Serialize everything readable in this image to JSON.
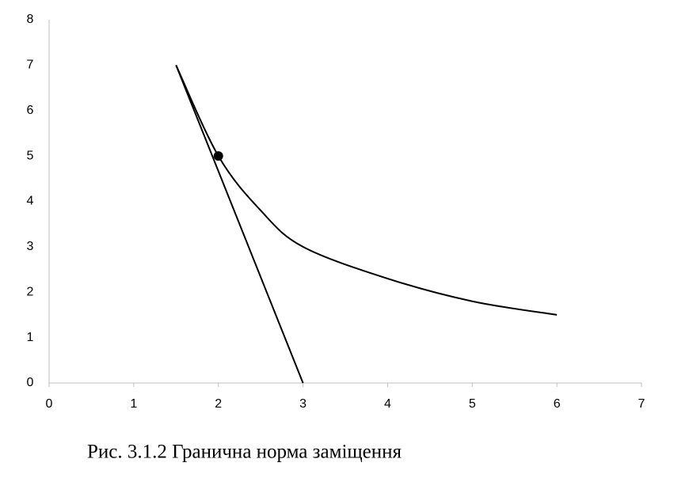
{
  "chart_data": {
    "type": "line",
    "caption": "Рис. 3.1.2 Гранична норма заміщення",
    "xlim": [
      0,
      7
    ],
    "xticks": [
      0,
      1,
      2,
      3,
      4,
      5,
      6,
      7
    ],
    "ylim": [
      0,
      8
    ],
    "yticks": [
      0,
      1,
      2,
      3,
      4,
      5,
      6,
      7,
      8
    ],
    "grid": false,
    "series": [
      {
        "color": "#000000",
        "smooth": true,
        "x": [
          1.5,
          2,
          2.5,
          3,
          4,
          5,
          6
        ],
        "values": [
          7,
          5,
          3.8,
          3,
          2.3,
          1.8,
          1.5
        ]
      },
      {
        "color": "#000000",
        "smooth": false,
        "x": [
          1.5,
          3
        ],
        "values": [
          7,
          0
        ]
      },
      {
        "color": "#000000",
        "marker": true,
        "x": [
          2
        ],
        "values": [
          5
        ]
      }
    ]
  }
}
